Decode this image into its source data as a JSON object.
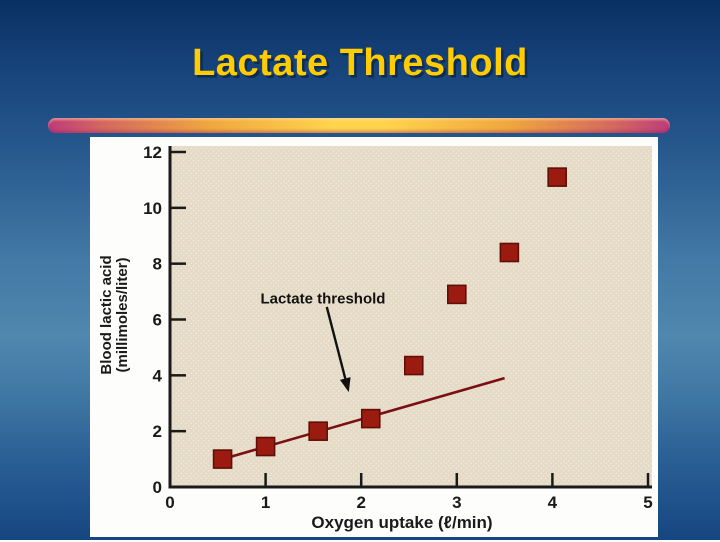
{
  "slide": {
    "title": "Lactate Threshold",
    "title_color": "#FFCC00",
    "title_shadow_color": "#0B2A55",
    "divider_colors": [
      "#BE3C7C",
      "#D4685F",
      "#F0A73E",
      "#FFD44D"
    ],
    "background_colors": [
      "#0A3063",
      "#4F87AE",
      "#164680"
    ]
  },
  "chart_data": {
    "type": "scatter",
    "title": "",
    "xlabel": "Oxygen uptake (ℓ/min)",
    "ylabel": "Blood lactic acid (millimoles/liter)",
    "ylabel_lines": [
      "Blood lactic acid",
      "(millimoles/liter)"
    ],
    "xlim": [
      0,
      5
    ],
    "ylim": [
      0,
      12
    ],
    "x_ticks": [
      0,
      1,
      2,
      3,
      4,
      5
    ],
    "y_ticks": [
      0,
      2,
      4,
      6,
      8,
      10,
      12
    ],
    "grid": false,
    "legend": false,
    "points": [
      {
        "x": 0.55,
        "y": 1.0
      },
      {
        "x": 1.0,
        "y": 1.45
      },
      {
        "x": 1.55,
        "y": 2.0
      },
      {
        "x": 2.1,
        "y": 2.45
      },
      {
        "x": 2.55,
        "y": 4.35
      },
      {
        "x": 3.0,
        "y": 6.9
      },
      {
        "x": 3.55,
        "y": 8.4
      },
      {
        "x": 4.05,
        "y": 11.1
      }
    ],
    "baseline": {
      "x1": 0.55,
      "y1": 1.0,
      "x2": 3.5,
      "y2": 3.9
    },
    "annotation": {
      "text": "Lactate threshold",
      "text_x": 1.6,
      "text_y": 6.75,
      "arrow_x1": 1.64,
      "arrow_y1": 6.45,
      "arrow_x2": 1.87,
      "arrow_y2": 3.4
    },
    "marker": "square",
    "marker_size": 18,
    "marker_color": "#9C1B10",
    "marker_edge_color": "#5F0F08",
    "line_color": "#7A1013",
    "plot_bg_color": "#E4DAC6",
    "plot_dot_color": "#F3ECDC",
    "axis_color": "#1A1A1A"
  }
}
